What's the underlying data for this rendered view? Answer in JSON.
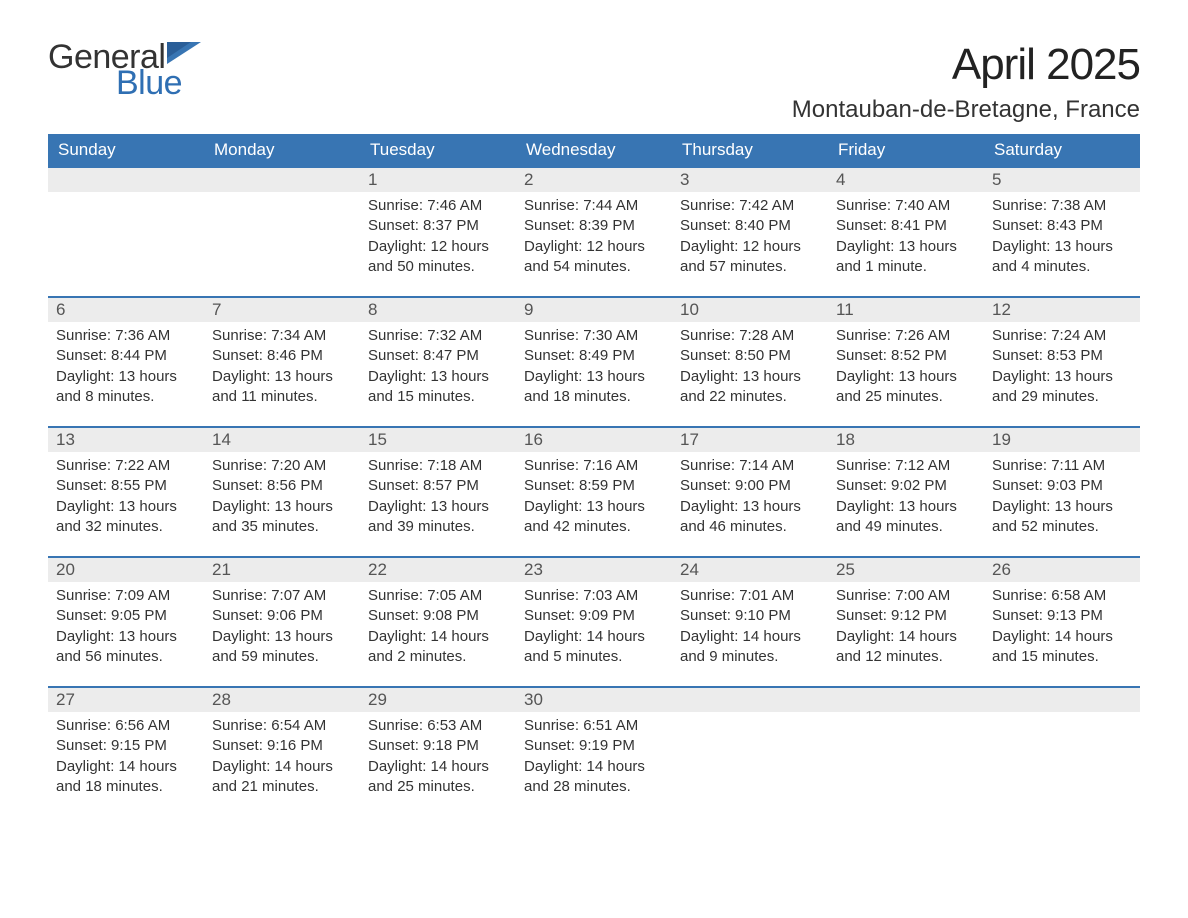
{
  "logo": {
    "general": "General",
    "blue": "Blue"
  },
  "title": "April 2025",
  "location": "Montauban-de-Bretagne, France",
  "colors": {
    "header_bg": "#3875b3",
    "header_text": "#ffffff",
    "daynum_bg": "#ececec",
    "daynum_text": "#555555",
    "body_text": "#333333",
    "logo_blue": "#2f6fb3",
    "week_border": "#3875b3",
    "page_bg": "#ffffff"
  },
  "typography": {
    "title_fontsize": 44,
    "location_fontsize": 24,
    "weekday_fontsize": 17,
    "daynum_fontsize": 17,
    "data_fontsize": 15,
    "logo_fontsize": 34
  },
  "weekdays": [
    "Sunday",
    "Monday",
    "Tuesday",
    "Wednesday",
    "Thursday",
    "Friday",
    "Saturday"
  ],
  "weeks": [
    [
      {
        "day": "",
        "sunrise": "",
        "sunset": "",
        "daylight": ""
      },
      {
        "day": "",
        "sunrise": "",
        "sunset": "",
        "daylight": ""
      },
      {
        "day": "1",
        "sunrise": "Sunrise: 7:46 AM",
        "sunset": "Sunset: 8:37 PM",
        "daylight": "Daylight: 12 hours and 50 minutes."
      },
      {
        "day": "2",
        "sunrise": "Sunrise: 7:44 AM",
        "sunset": "Sunset: 8:39 PM",
        "daylight": "Daylight: 12 hours and 54 minutes."
      },
      {
        "day": "3",
        "sunrise": "Sunrise: 7:42 AM",
        "sunset": "Sunset: 8:40 PM",
        "daylight": "Daylight: 12 hours and 57 minutes."
      },
      {
        "day": "4",
        "sunrise": "Sunrise: 7:40 AM",
        "sunset": "Sunset: 8:41 PM",
        "daylight": "Daylight: 13 hours and 1 minute."
      },
      {
        "day": "5",
        "sunrise": "Sunrise: 7:38 AM",
        "sunset": "Sunset: 8:43 PM",
        "daylight": "Daylight: 13 hours and 4 minutes."
      }
    ],
    [
      {
        "day": "6",
        "sunrise": "Sunrise: 7:36 AM",
        "sunset": "Sunset: 8:44 PM",
        "daylight": "Daylight: 13 hours and 8 minutes."
      },
      {
        "day": "7",
        "sunrise": "Sunrise: 7:34 AM",
        "sunset": "Sunset: 8:46 PM",
        "daylight": "Daylight: 13 hours and 11 minutes."
      },
      {
        "day": "8",
        "sunrise": "Sunrise: 7:32 AM",
        "sunset": "Sunset: 8:47 PM",
        "daylight": "Daylight: 13 hours and 15 minutes."
      },
      {
        "day": "9",
        "sunrise": "Sunrise: 7:30 AM",
        "sunset": "Sunset: 8:49 PM",
        "daylight": "Daylight: 13 hours and 18 minutes."
      },
      {
        "day": "10",
        "sunrise": "Sunrise: 7:28 AM",
        "sunset": "Sunset: 8:50 PM",
        "daylight": "Daylight: 13 hours and 22 minutes."
      },
      {
        "day": "11",
        "sunrise": "Sunrise: 7:26 AM",
        "sunset": "Sunset: 8:52 PM",
        "daylight": "Daylight: 13 hours and 25 minutes."
      },
      {
        "day": "12",
        "sunrise": "Sunrise: 7:24 AM",
        "sunset": "Sunset: 8:53 PM",
        "daylight": "Daylight: 13 hours and 29 minutes."
      }
    ],
    [
      {
        "day": "13",
        "sunrise": "Sunrise: 7:22 AM",
        "sunset": "Sunset: 8:55 PM",
        "daylight": "Daylight: 13 hours and 32 minutes."
      },
      {
        "day": "14",
        "sunrise": "Sunrise: 7:20 AM",
        "sunset": "Sunset: 8:56 PM",
        "daylight": "Daylight: 13 hours and 35 minutes."
      },
      {
        "day": "15",
        "sunrise": "Sunrise: 7:18 AM",
        "sunset": "Sunset: 8:57 PM",
        "daylight": "Daylight: 13 hours and 39 minutes."
      },
      {
        "day": "16",
        "sunrise": "Sunrise: 7:16 AM",
        "sunset": "Sunset: 8:59 PM",
        "daylight": "Daylight: 13 hours and 42 minutes."
      },
      {
        "day": "17",
        "sunrise": "Sunrise: 7:14 AM",
        "sunset": "Sunset: 9:00 PM",
        "daylight": "Daylight: 13 hours and 46 minutes."
      },
      {
        "day": "18",
        "sunrise": "Sunrise: 7:12 AM",
        "sunset": "Sunset: 9:02 PM",
        "daylight": "Daylight: 13 hours and 49 minutes."
      },
      {
        "day": "19",
        "sunrise": "Sunrise: 7:11 AM",
        "sunset": "Sunset: 9:03 PM",
        "daylight": "Daylight: 13 hours and 52 minutes."
      }
    ],
    [
      {
        "day": "20",
        "sunrise": "Sunrise: 7:09 AM",
        "sunset": "Sunset: 9:05 PM",
        "daylight": "Daylight: 13 hours and 56 minutes."
      },
      {
        "day": "21",
        "sunrise": "Sunrise: 7:07 AM",
        "sunset": "Sunset: 9:06 PM",
        "daylight": "Daylight: 13 hours and 59 minutes."
      },
      {
        "day": "22",
        "sunrise": "Sunrise: 7:05 AM",
        "sunset": "Sunset: 9:08 PM",
        "daylight": "Daylight: 14 hours and 2 minutes."
      },
      {
        "day": "23",
        "sunrise": "Sunrise: 7:03 AM",
        "sunset": "Sunset: 9:09 PM",
        "daylight": "Daylight: 14 hours and 5 minutes."
      },
      {
        "day": "24",
        "sunrise": "Sunrise: 7:01 AM",
        "sunset": "Sunset: 9:10 PM",
        "daylight": "Daylight: 14 hours and 9 minutes."
      },
      {
        "day": "25",
        "sunrise": "Sunrise: 7:00 AM",
        "sunset": "Sunset: 9:12 PM",
        "daylight": "Daylight: 14 hours and 12 minutes."
      },
      {
        "day": "26",
        "sunrise": "Sunrise: 6:58 AM",
        "sunset": "Sunset: 9:13 PM",
        "daylight": "Daylight: 14 hours and 15 minutes."
      }
    ],
    [
      {
        "day": "27",
        "sunrise": "Sunrise: 6:56 AM",
        "sunset": "Sunset: 9:15 PM",
        "daylight": "Daylight: 14 hours and 18 minutes."
      },
      {
        "day": "28",
        "sunrise": "Sunrise: 6:54 AM",
        "sunset": "Sunset: 9:16 PM",
        "daylight": "Daylight: 14 hours and 21 minutes."
      },
      {
        "day": "29",
        "sunrise": "Sunrise: 6:53 AM",
        "sunset": "Sunset: 9:18 PM",
        "daylight": "Daylight: 14 hours and 25 minutes."
      },
      {
        "day": "30",
        "sunrise": "Sunrise: 6:51 AM",
        "sunset": "Sunset: 9:19 PM",
        "daylight": "Daylight: 14 hours and 28 minutes."
      },
      {
        "day": "",
        "sunrise": "",
        "sunset": "",
        "daylight": ""
      },
      {
        "day": "",
        "sunrise": "",
        "sunset": "",
        "daylight": ""
      },
      {
        "day": "",
        "sunrise": "",
        "sunset": "",
        "daylight": ""
      }
    ]
  ]
}
